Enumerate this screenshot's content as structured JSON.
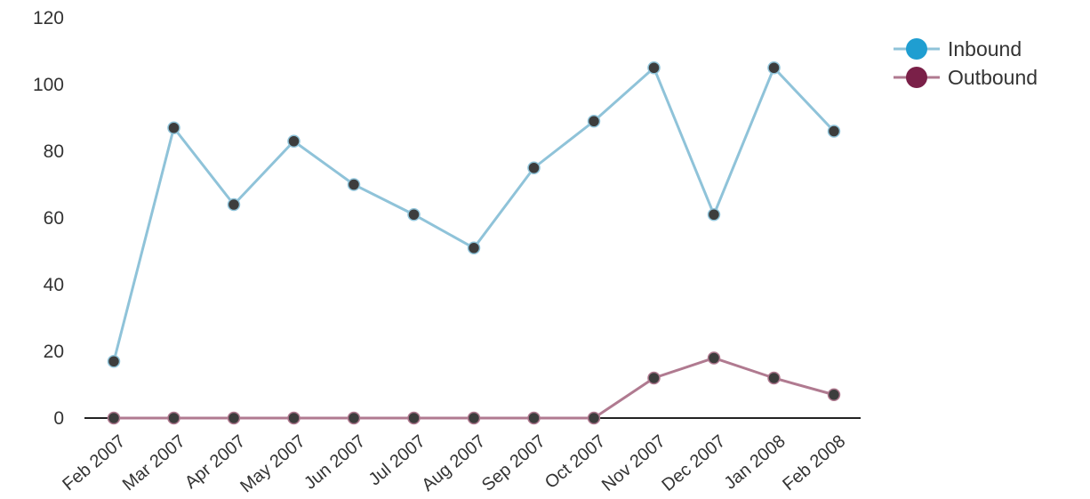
{
  "chart_data": {
    "type": "line",
    "title": "",
    "xlabel": "",
    "ylabel": "",
    "categories": [
      "Feb 2007",
      "Mar 2007",
      "Apr 2007",
      "May 2007",
      "Jun 2007",
      "Jul 2007",
      "Aug 2007",
      "Sep 2007",
      "Oct 2007",
      "Nov 2007",
      "Dec 2007",
      "Jan 2008",
      "Feb 2008"
    ],
    "ylim": [
      0,
      120
    ],
    "yticks": [
      0,
      20,
      40,
      60,
      80,
      100,
      120
    ],
    "grid": false,
    "legend_position": "top-right",
    "series": [
      {
        "name": "Inbound",
        "color": "#1f9ed1",
        "line_color": "#8fc3d9",
        "values": [
          17,
          87,
          64,
          83,
          70,
          61,
          51,
          75,
          89,
          105,
          61,
          105,
          86
        ]
      },
      {
        "name": "Outbound",
        "color": "#7a2048",
        "line_color": "#b07a90",
        "values": [
          0,
          0,
          0,
          0,
          0,
          0,
          0,
          0,
          0,
          12,
          18,
          12,
          7
        ]
      }
    ]
  }
}
